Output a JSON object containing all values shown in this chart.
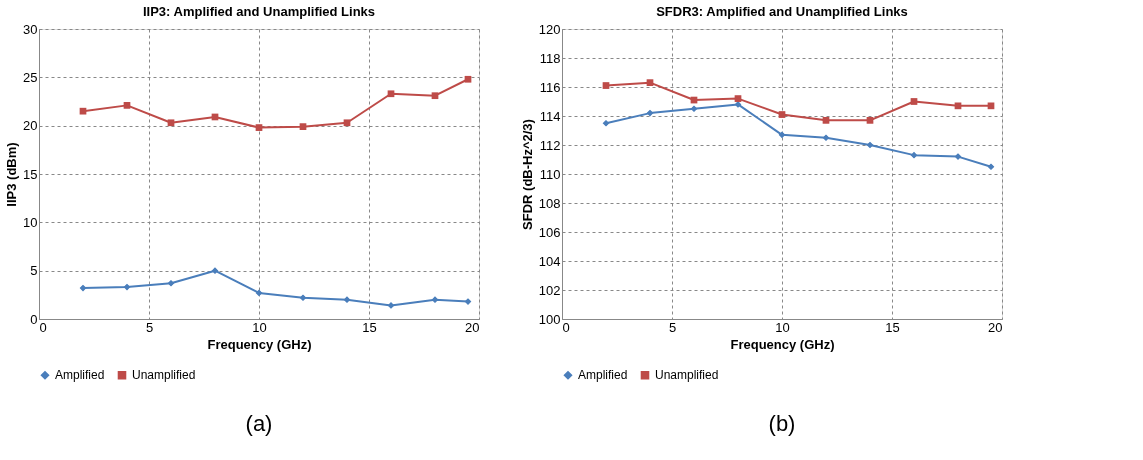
{
  "chart_data": [
    {
      "type": "line",
      "title": "IIP3: Amplified and Unamplified Links",
      "xlabel": "Frequency (GHz)",
      "ylabel": "IIP3 (dBm)",
      "x": [
        2,
        4,
        6,
        8,
        10,
        12,
        14,
        16,
        18,
        19.5
      ],
      "series": [
        {
          "name": "Amplified",
          "color": "#4a7ebb",
          "marker": "diamond",
          "values": [
            3.2,
            3.3,
            3.7,
            5.0,
            2.7,
            2.2,
            2.0,
            1.4,
            2.0,
            1.8
          ]
        },
        {
          "name": "Unamplified",
          "color": "#be4b48",
          "marker": "square",
          "values": [
            21.5,
            22.1,
            20.3,
            20.9,
            19.8,
            19.9,
            20.3,
            23.3,
            23.1,
            24.8
          ]
        }
      ],
      "xlim": [
        0,
        20
      ],
      "xticks": [
        0,
        5,
        10,
        15,
        20
      ],
      "ylim": [
        0,
        30
      ],
      "yticks": [
        0,
        5,
        10,
        15,
        20,
        25,
        30
      ],
      "grid": true,
      "legend": "bottom",
      "line_style": "solid",
      "annotations": [
        "(a)"
      ]
    },
    {
      "type": "line",
      "title": "SFDR3: Amplified and Unamplified Links",
      "xlabel": "Frequency (GHz)",
      "ylabel": "SFDR (dB-Hz^2/3)",
      "x": [
        2,
        4,
        6,
        8,
        10,
        12,
        14,
        16,
        18,
        19.5
      ],
      "series": [
        {
          "name": "Amplified",
          "color": "#4a7ebb",
          "marker": "diamond",
          "values": [
            113.5,
            114.2,
            114.5,
            114.8,
            112.7,
            112.5,
            112.0,
            111.3,
            111.2,
            110.5
          ]
        },
        {
          "name": "Unamplified",
          "color": "#be4b48",
          "marker": "square",
          "values": [
            116.1,
            116.3,
            115.1,
            115.2,
            114.1,
            113.7,
            113.7,
            115.0,
            114.7,
            114.7
          ]
        }
      ],
      "xlim": [
        0,
        20
      ],
      "xticks": [
        0,
        5,
        10,
        15,
        20
      ],
      "ylim": [
        100,
        120
      ],
      "yticks": [
        100,
        102,
        104,
        106,
        108,
        110,
        112,
        114,
        116,
        118,
        120
      ],
      "grid": true,
      "legend": "bottom",
      "line_style": "solid",
      "annotations": [
        "(b)"
      ]
    }
  ]
}
